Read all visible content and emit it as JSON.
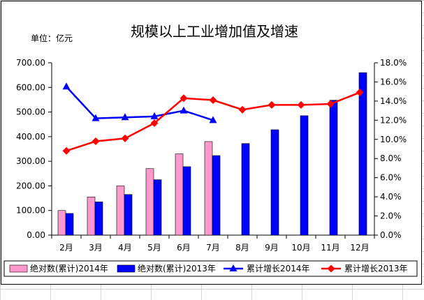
{
  "sheet": {
    "grid": true
  },
  "chart_data": {
    "type": "bar",
    "title": "规模以上工业增加值及增速",
    "unit_label": "单位：亿元",
    "categories": [
      "2月",
      "3月",
      "4月",
      "5月",
      "6月",
      "7月",
      "8月",
      "9月",
      "10月",
      "11月",
      "12月"
    ],
    "y_left": {
      "ylim": [
        0,
        700
      ],
      "ticks": [
        "0.00",
        "100.00",
        "200.00",
        "300.00",
        "400.00",
        "500.00",
        "600.00",
        "700.00"
      ]
    },
    "y_right": {
      "ylim": [
        0,
        18
      ],
      "ticks": [
        "0.0%",
        "2.0%",
        "4.0%",
        "6.0%",
        "8.0%",
        "10.0%",
        "12.0%",
        "14.0%",
        "16.0%",
        "18.0%"
      ]
    },
    "bar_series": [
      {
        "name": "绝对数(累计)2014年",
        "color": "#ff99cc",
        "values": [
          100,
          155,
          200,
          270,
          330,
          380,
          null,
          null,
          null,
          null,
          null
        ]
      },
      {
        "name": "绝对数(累计)2013年",
        "color": "#0000ff",
        "values": [
          88,
          135,
          165,
          225,
          278,
          323,
          372,
          428,
          485,
          548,
          660
        ]
      }
    ],
    "line_series": [
      {
        "name": "累计增长2014年",
        "color": "#0000ff",
        "marker": "triangle",
        "axis": "right",
        "values": [
          15.5,
          12.2,
          12.3,
          12.4,
          13.0,
          12.0,
          null,
          null,
          null,
          null,
          null
        ]
      },
      {
        "name": "累计增长2013年",
        "color": "#ff0000",
        "marker": "diamond",
        "axis": "right",
        "values": [
          8.8,
          9.8,
          10.1,
          11.7,
          14.3,
          14.1,
          13.1,
          13.6,
          13.6,
          13.7,
          14.9
        ]
      }
    ],
    "legend_position": "bottom",
    "grid": false
  }
}
